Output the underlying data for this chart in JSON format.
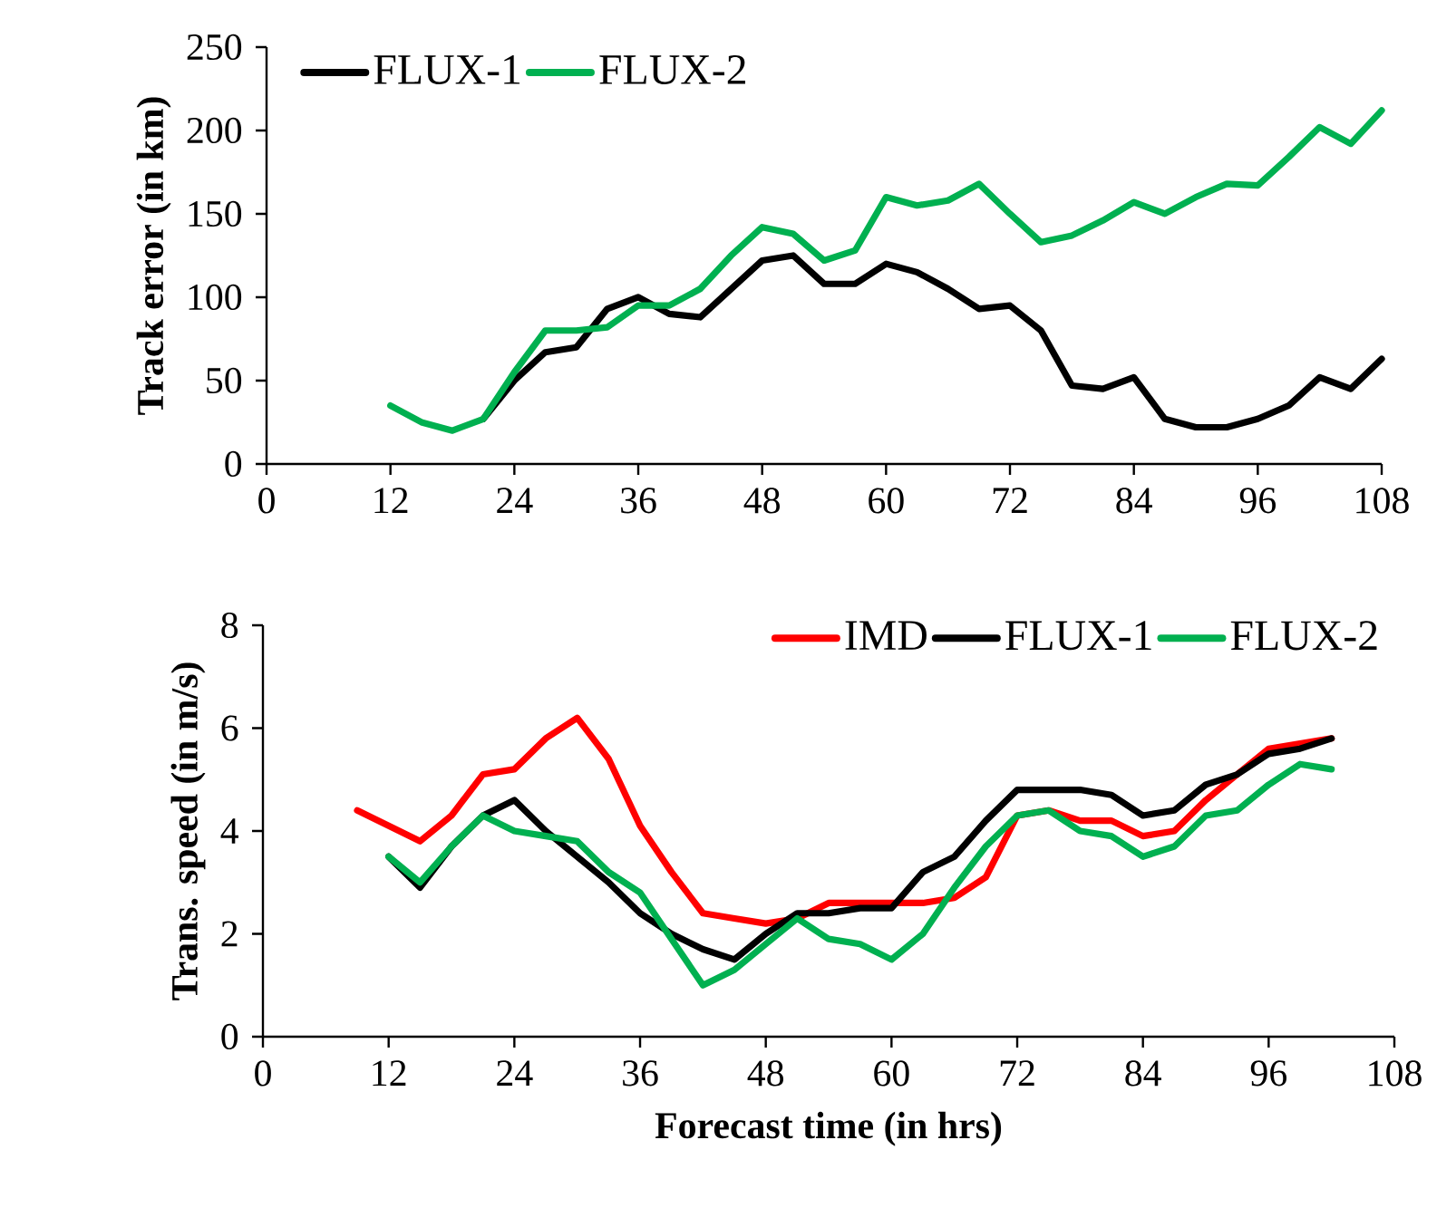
{
  "chart_data": [
    {
      "type": "line",
      "ylabel": "Track error (in km)",
      "xlim": [
        0,
        108
      ],
      "ylim": [
        0,
        250
      ],
      "xticks": [
        0,
        12,
        24,
        36,
        48,
        60,
        72,
        84,
        96,
        108
      ],
      "yticks": [
        0,
        50,
        100,
        150,
        200,
        250
      ],
      "legend": "top left",
      "marker": "none",
      "line_style": "solid",
      "x": [
        12,
        15,
        18,
        21,
        24,
        27,
        30,
        33,
        36,
        39,
        42,
        45,
        48,
        51,
        54,
        57,
        60,
        63,
        66,
        69,
        72,
        75,
        78,
        81,
        84,
        87,
        90,
        93,
        96,
        99,
        102,
        105,
        108
      ],
      "series": [
        {
          "name": "FLUX-1",
          "color": "#000000",
          "values": [
            null,
            null,
            null,
            27,
            50,
            67,
            70,
            93,
            100,
            90,
            88,
            105,
            122,
            125,
            108,
            108,
            120,
            115,
            105,
            93,
            95,
            80,
            47,
            45,
            52,
            27,
            22,
            22,
            27,
            35,
            52,
            45,
            63
          ]
        },
        {
          "name": "FLUX-2",
          "color": "#00b050",
          "values": [
            35,
            25,
            20,
            27,
            55,
            80,
            80,
            82,
            95,
            95,
            105,
            125,
            142,
            138,
            122,
            128,
            160,
            155,
            158,
            168,
            150,
            133,
            137,
            146,
            157,
            150,
            160,
            168,
            167,
            184,
            202,
            192,
            212
          ]
        }
      ]
    },
    {
      "type": "line",
      "xlabel": "Forecast time (in hrs)",
      "ylabel": "Trans. speed (in m/s)",
      "xlim": [
        0,
        108
      ],
      "ylim": [
        0,
        8
      ],
      "xticks": [
        0,
        12,
        24,
        36,
        48,
        60,
        72,
        84,
        96,
        108
      ],
      "yticks": [
        0,
        2,
        4,
        6,
        8
      ],
      "legend": "top right",
      "marker": "none",
      "line_style": "solid",
      "series": [
        {
          "name": "IMD",
          "color": "#ff0000",
          "x": [
            9,
            12,
            15,
            18,
            21,
            24,
            27,
            30,
            33,
            36,
            39,
            42,
            45,
            48,
            51,
            54,
            57,
            60,
            63,
            66,
            69,
            72,
            75,
            78,
            81,
            84,
            87,
            90,
            93,
            96,
            99,
            102
          ],
          "values": [
            4.4,
            4.1,
            3.8,
            4.3,
            5.1,
            5.2,
            5.8,
            6.2,
            5.4,
            4.1,
            3.2,
            2.4,
            2.3,
            2.2,
            2.3,
            2.6,
            2.6,
            2.6,
            2.6,
            2.7,
            3.1,
            4.3,
            4.4,
            4.2,
            4.2,
            3.9,
            4.0,
            4.6,
            5.1,
            5.6,
            5.7,
            5.8
          ]
        },
        {
          "name": "FLUX-1",
          "color": "#000000",
          "x": [
            12,
            15,
            18,
            21,
            24,
            27,
            30,
            33,
            36,
            39,
            42,
            45,
            48,
            51,
            54,
            57,
            60,
            63,
            66,
            69,
            72,
            75,
            78,
            81,
            84,
            87,
            90,
            93,
            96,
            99,
            102
          ],
          "values": [
            3.5,
            2.9,
            3.7,
            4.3,
            4.6,
            4.0,
            3.5,
            3.0,
            2.4,
            2.0,
            1.7,
            1.5,
            2.0,
            2.4,
            2.4,
            2.5,
            2.5,
            3.2,
            3.5,
            4.2,
            4.8,
            4.8,
            4.8,
            4.7,
            4.3,
            4.4,
            4.9,
            5.1,
            5.5,
            5.6,
            5.8
          ]
        },
        {
          "name": "FLUX-2",
          "color": "#00b050",
          "x": [
            12,
            15,
            18,
            21,
            24,
            27,
            30,
            33,
            36,
            39,
            42,
            45,
            48,
            51,
            54,
            57,
            60,
            63,
            66,
            69,
            72,
            75,
            78,
            81,
            84,
            87,
            90,
            93,
            96,
            99,
            102
          ],
          "values": [
            3.5,
            3.0,
            3.7,
            4.3,
            4.0,
            3.9,
            3.8,
            3.2,
            2.8,
            1.9,
            1.0,
            1.3,
            1.8,
            2.3,
            1.9,
            1.8,
            1.5,
            2.0,
            2.9,
            3.7,
            4.3,
            4.4,
            4.0,
            3.9,
            3.5,
            3.7,
            4.3,
            4.4,
            4.9,
            5.3,
            5.2
          ]
        }
      ]
    }
  ]
}
